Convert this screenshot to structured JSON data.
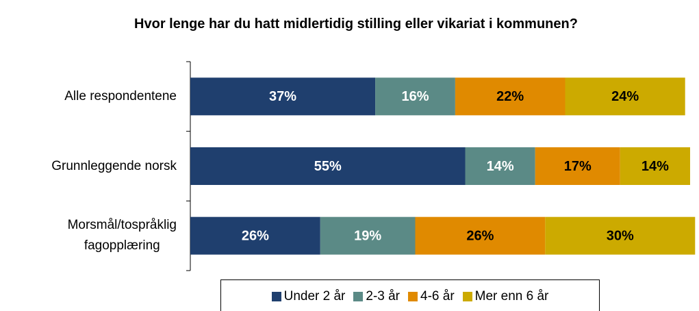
{
  "chart_data": {
    "type": "stacked_bar_horizontal",
    "title": "Hvor lenge har du hatt midlertidig stilling eller vikariat i kommunen?",
    "categories": [
      "Alle respondentene",
      "Grunnleggende norsk",
      "Morsmål/tospråklig\nfagopplæring"
    ],
    "xlim": [
      0,
      100
    ],
    "series": [
      {
        "name": "Under 2 år",
        "color": "#1f3f6e",
        "values": [
          37,
          55,
          26
        ],
        "value_labels": [
          "37%",
          "55%",
          "26%"
        ]
      },
      {
        "name": "2-3 år",
        "color": "#5b8a86",
        "values": [
          16,
          14,
          19
        ],
        "value_labels": [
          "16%",
          "14%",
          "19%"
        ]
      },
      {
        "name": "4-6 år",
        "color": "#e08a00",
        "values": [
          22,
          17,
          26
        ],
        "value_labels": [
          "22%",
          "17%",
          "26%"
        ]
      },
      {
        "name": "Mer enn 6 år",
        "color": "#ccaa00",
        "values": [
          24,
          14,
          30
        ],
        "value_labels": [
          "24%",
          "14%",
          "30%"
        ]
      }
    ],
    "legend": "bottom"
  }
}
